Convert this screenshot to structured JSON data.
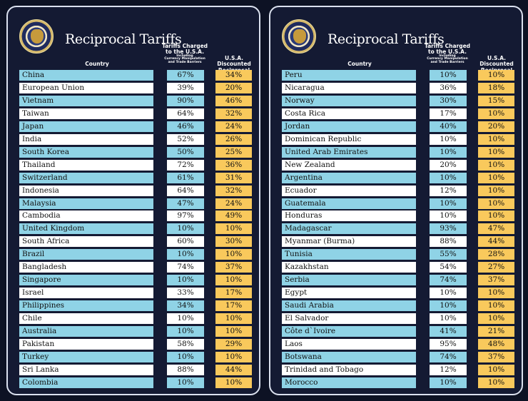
{
  "title": "Reciprocal Tariffs",
  "headers": {
    "country": "Country",
    "charged_line1": "Tariffs Charged",
    "charged_line2": "to the U.S.A.",
    "charged_note1": "Including",
    "charged_note2": "Currency Manipulation",
    "charged_note3": "and Trade Barriers",
    "discounted_line1": "U.S.A. Discounted",
    "discounted_line2": "Reciprocal Tariffs"
  },
  "colors": {
    "background": "#0d1224",
    "panel": "#141a33",
    "row_blue": "#8fd3e6",
    "row_white": "#ffffff",
    "discount_cell": "#f9c95c"
  },
  "seal_icon": "presidential-seal-icon",
  "left_table": [
    {
      "country": "China",
      "charged": "67%",
      "discounted": "34%"
    },
    {
      "country": "European Union",
      "charged": "39%",
      "discounted": "20%"
    },
    {
      "country": "Vietnam",
      "charged": "90%",
      "discounted": "46%"
    },
    {
      "country": "Taiwan",
      "charged": "64%",
      "discounted": "32%"
    },
    {
      "country": "Japan",
      "charged": "46%",
      "discounted": "24%"
    },
    {
      "country": "India",
      "charged": "52%",
      "discounted": "26%"
    },
    {
      "country": "South Korea",
      "charged": "50%",
      "discounted": "25%"
    },
    {
      "country": "Thailand",
      "charged": "72%",
      "discounted": "36%"
    },
    {
      "country": "Switzerland",
      "charged": "61%",
      "discounted": "31%"
    },
    {
      "country": "Indonesia",
      "charged": "64%",
      "discounted": "32%"
    },
    {
      "country": "Malaysia",
      "charged": "47%",
      "discounted": "24%"
    },
    {
      "country": "Cambodia",
      "charged": "97%",
      "discounted": "49%"
    },
    {
      "country": "United Kingdom",
      "charged": "10%",
      "discounted": "10%"
    },
    {
      "country": "South Africa",
      "charged": "60%",
      "discounted": "30%"
    },
    {
      "country": "Brazil",
      "charged": "10%",
      "discounted": "10%"
    },
    {
      "country": "Bangladesh",
      "charged": "74%",
      "discounted": "37%"
    },
    {
      "country": "Singapore",
      "charged": "10%",
      "discounted": "10%"
    },
    {
      "country": "Israel",
      "charged": "33%",
      "discounted": "17%"
    },
    {
      "country": "Philippines",
      "charged": "34%",
      "discounted": "17%"
    },
    {
      "country": "Chile",
      "charged": "10%",
      "discounted": "10%"
    },
    {
      "country": "Australia",
      "charged": "10%",
      "discounted": "10%"
    },
    {
      "country": "Pakistan",
      "charged": "58%",
      "discounted": "29%"
    },
    {
      "country": "Turkey",
      "charged": "10%",
      "discounted": "10%"
    },
    {
      "country": "Sri Lanka",
      "charged": "88%",
      "discounted": "44%"
    },
    {
      "country": "Colombia",
      "charged": "10%",
      "discounted": "10%"
    }
  ],
  "right_table": [
    {
      "country": "Peru",
      "charged": "10%",
      "discounted": "10%"
    },
    {
      "country": "Nicaragua",
      "charged": "36%",
      "discounted": "18%"
    },
    {
      "country": "Norway",
      "charged": "30%",
      "discounted": "15%"
    },
    {
      "country": "Costa Rica",
      "charged": "17%",
      "discounted": "10%"
    },
    {
      "country": "Jordan",
      "charged": "40%",
      "discounted": "20%"
    },
    {
      "country": "Dominican Republic",
      "charged": "10%",
      "discounted": "10%"
    },
    {
      "country": "United Arab Emirates",
      "charged": "10%",
      "discounted": "10%"
    },
    {
      "country": "New Zealand",
      "charged": "20%",
      "discounted": "10%"
    },
    {
      "country": "Argentina",
      "charged": "10%",
      "discounted": "10%"
    },
    {
      "country": "Ecuador",
      "charged": "12%",
      "discounted": "10%"
    },
    {
      "country": "Guatemala",
      "charged": "10%",
      "discounted": "10%"
    },
    {
      "country": "Honduras",
      "charged": "10%",
      "discounted": "10%"
    },
    {
      "country": "Madagascar",
      "charged": "93%",
      "discounted": "47%"
    },
    {
      "country": "Myanmar (Burma)",
      "charged": "88%",
      "discounted": "44%"
    },
    {
      "country": "Tunisia",
      "charged": "55%",
      "discounted": "28%"
    },
    {
      "country": "Kazakhstan",
      "charged": "54%",
      "discounted": "27%"
    },
    {
      "country": "Serbia",
      "charged": "74%",
      "discounted": "37%"
    },
    {
      "country": "Egypt",
      "charged": "10%",
      "discounted": "10%"
    },
    {
      "country": "Saudi Arabia",
      "charged": "10%",
      "discounted": "10%"
    },
    {
      "country": "El Salvador",
      "charged": "10%",
      "discounted": "10%"
    },
    {
      "country": "Côte d`Ivoire",
      "charged": "41%",
      "discounted": "21%"
    },
    {
      "country": "Laos",
      "charged": "95%",
      "discounted": "48%"
    },
    {
      "country": "Botswana",
      "charged": "74%",
      "discounted": "37%"
    },
    {
      "country": "Trinidad and Tobago",
      "charged": "12%",
      "discounted": "10%"
    },
    {
      "country": "Morocco",
      "charged": "10%",
      "discounted": "10%"
    }
  ]
}
